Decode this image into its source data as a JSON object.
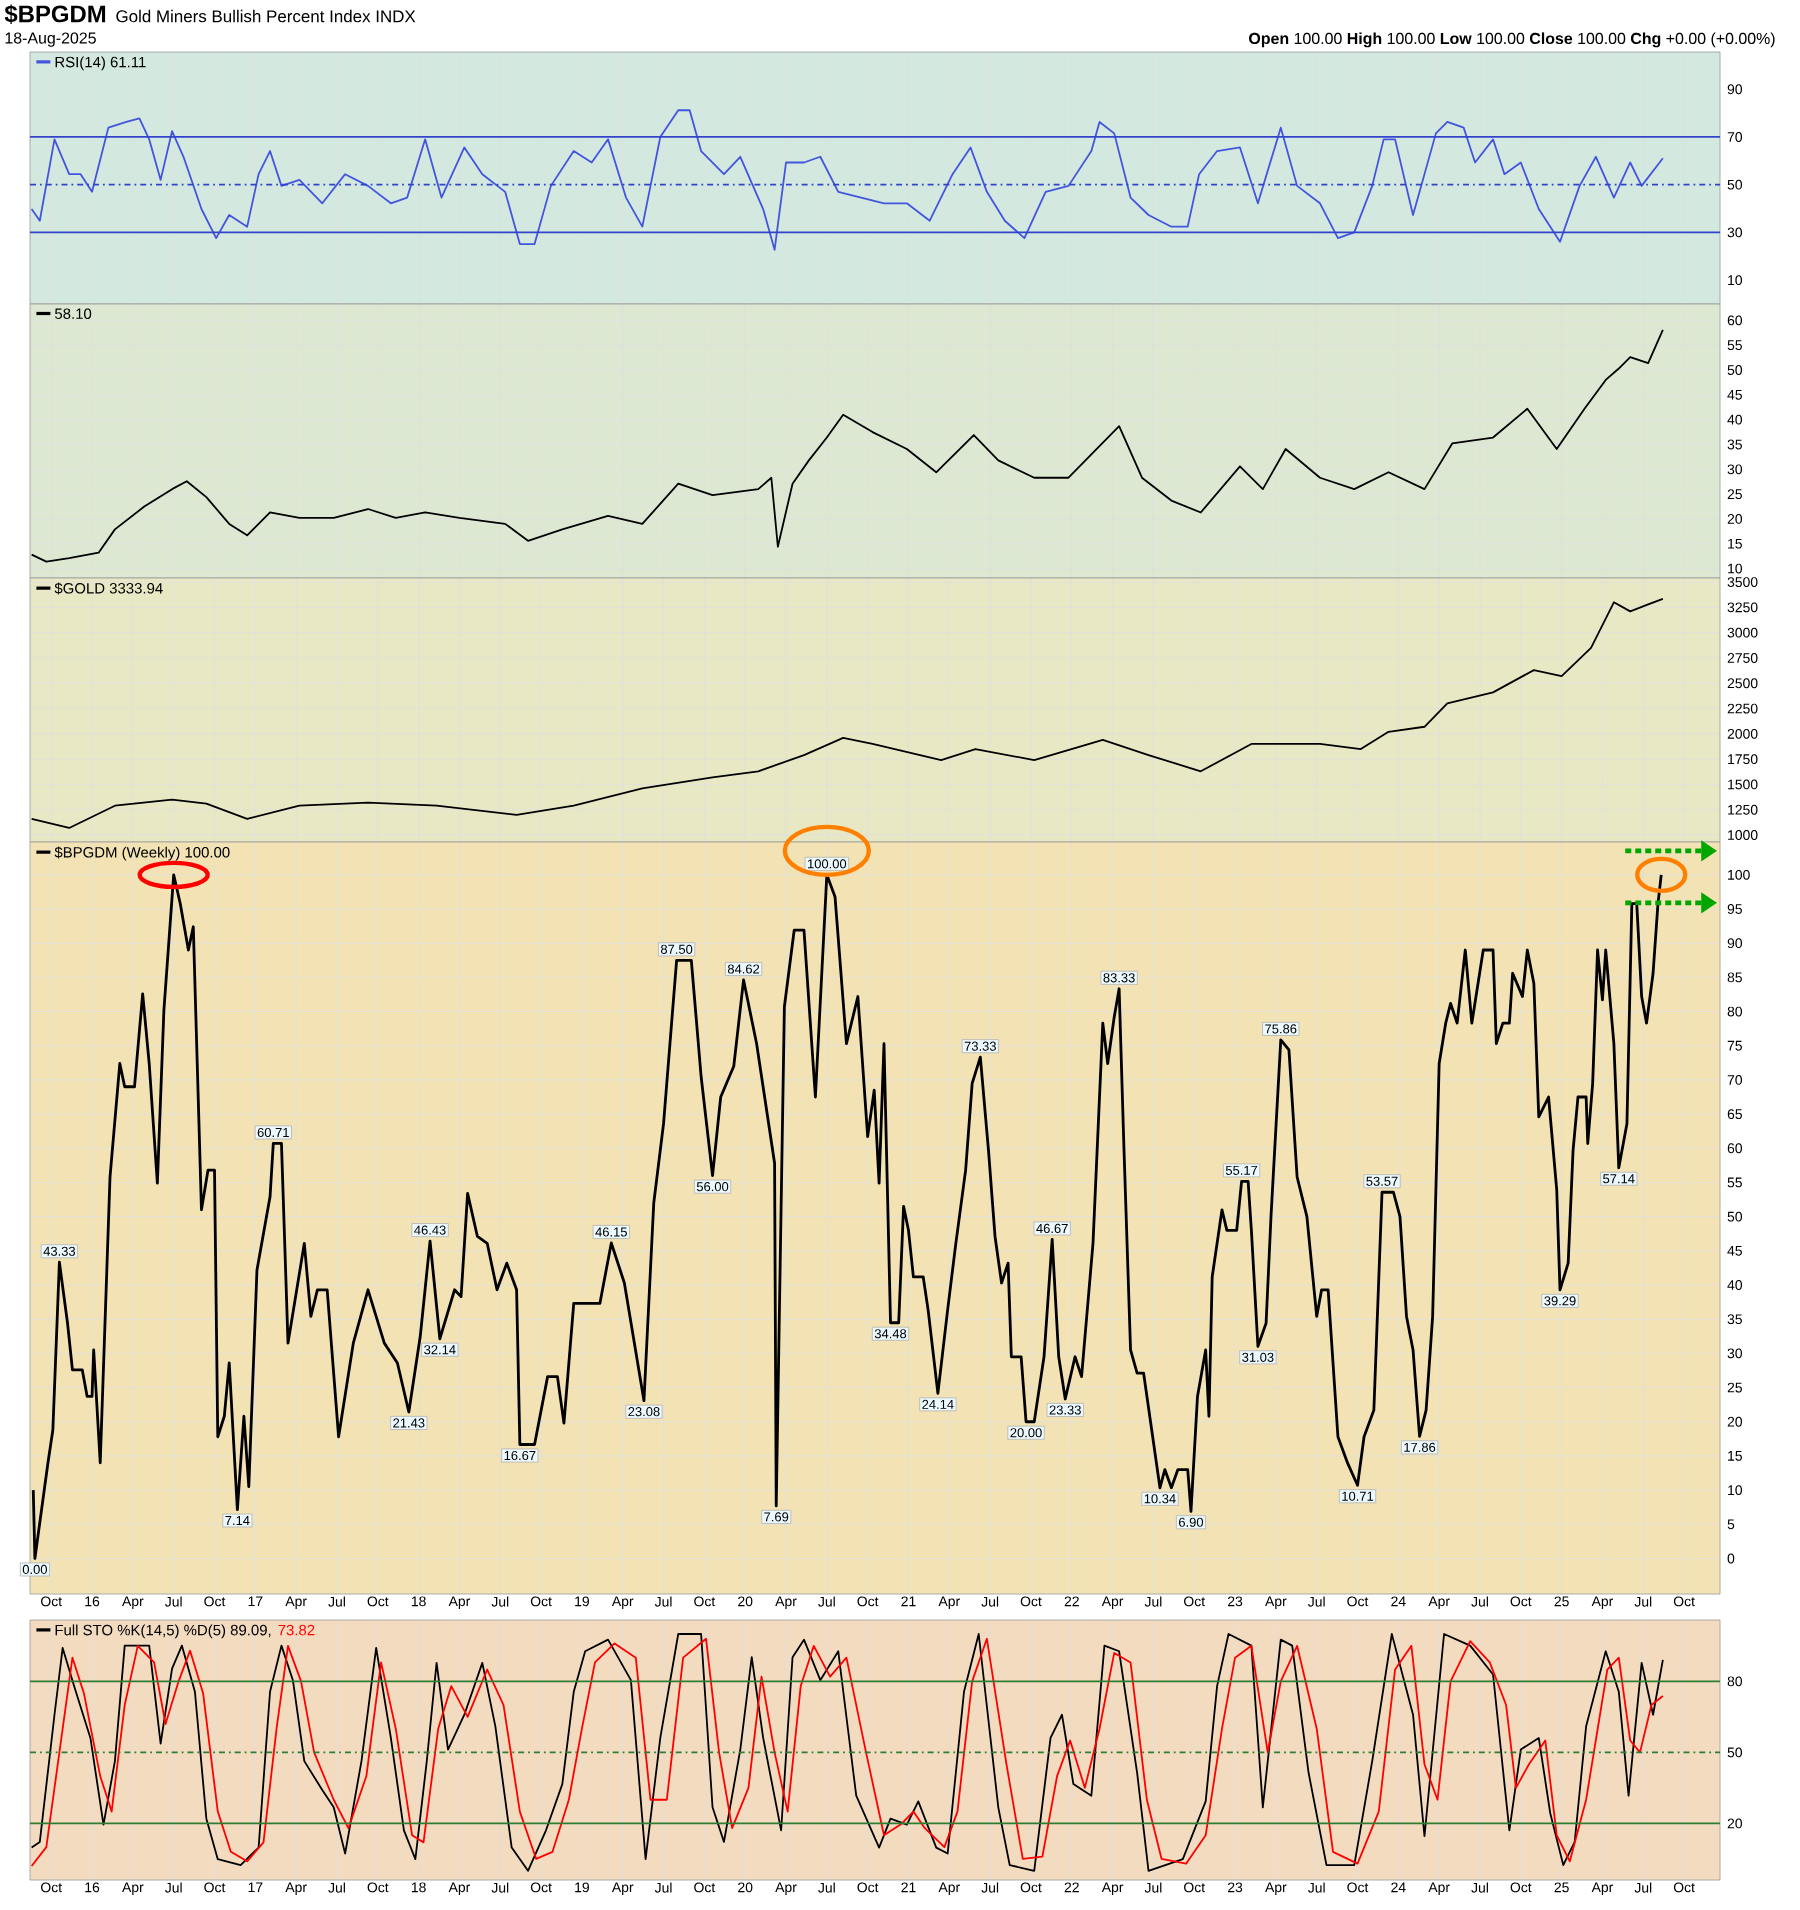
{
  "chart_data": [
    {
      "type": "line",
      "title": "$BPGDM",
      "subtitle": "Gold Miners Bullish Percent Index INDX",
      "annotations": [
        "18-Aug-2025",
        "**Open** 100.00 **High** 100.00 **Low** 100.00 **Close** 100.00 **Chg** +0.00 (+0.00%)"
      ],
      "xlim": [
        2015.62,
        2025.97
      ],
      "xticks": [
        2015.75,
        2016,
        2016.25,
        2016.5,
        2016.75,
        2017,
        2017.25,
        2017.5,
        2017.75,
        2018,
        2018.25,
        2018.5,
        2018.75,
        2019,
        2019.25,
        2019.5,
        2019.75,
        2020,
        2020.25,
        2020.5,
        2020.75,
        2021,
        2021.25,
        2021.5,
        2021.75,
        2022,
        2022.25,
        2022.5,
        2022.75,
        2023,
        2023.25,
        2023.5,
        2023.75,
        2024,
        2024.25,
        2024.5,
        2024.75,
        2025,
        2025.25,
        2025.5,
        2025.75
      ],
      "ylim": [
        0,
        105.6
      ],
      "yticks": [
        10,
        30,
        50,
        70,
        90
      ],
      "grid": "x",
      "tick_labels": "y",
      "legend": "top left",
      "ref_lines": [
        {
          "axis": "y",
          "value": 30,
          "color": "#3344cc",
          "line_style": "solid"
        },
        {
          "axis": "y",
          "value": 50,
          "color": "#3344cc",
          "line_style": "dashed"
        },
        {
          "axis": "y",
          "value": 70,
          "color": "#3344cc",
          "line_style": "solid"
        }
      ],
      "series": [
        {
          "name": "RSI(14) 61.11",
          "color": "#4455dd",
          "x": [
            2015.63,
            2015.68,
            2015.77,
            2015.86,
            2015.93,
            2016.0,
            2016.1,
            2016.21,
            2016.29,
            2016.35,
            2016.42,
            2016.49,
            2016.56,
            2016.67,
            2016.76,
            2016.84,
            2016.95,
            2017.02,
            2017.09,
            2017.16,
            2017.27,
            2017.41,
            2017.55,
            2017.69,
            2017.83,
            2017.93,
            2018.04,
            2018.14,
            2018.28,
            2018.39,
            2018.53,
            2018.62,
            2018.71,
            2018.81,
            2018.95,
            2019.06,
            2019.16,
            2019.27,
            2019.37,
            2019.48,
            2019.59,
            2019.66,
            2019.73,
            2019.87,
            2019.97,
            2020.11,
            2020.18,
            2020.25,
            2020.36,
            2020.46,
            2020.57,
            2020.71,
            2020.85,
            2020.99,
            2021.13,
            2021.27,
            2021.38,
            2021.48,
            2021.59,
            2021.71,
            2021.84,
            2021.98,
            2022.12,
            2022.17,
            2022.26,
            2022.36,
            2022.47,
            2022.61,
            2022.71,
            2022.78,
            2022.89,
            2023.03,
            2023.14,
            2023.28,
            2023.38,
            2023.52,
            2023.63,
            2023.73,
            2023.84,
            2023.91,
            2023.98,
            2024.09,
            2024.23,
            2024.3,
            2024.4,
            2024.47,
            2024.58,
            2024.65,
            2024.75,
            2024.86,
            2024.99,
            2025.11,
            2025.21,
            2025.32,
            2025.42,
            2025.49,
            2025.62
          ],
          "values": [
            39.8,
            34.9,
            69,
            54.4,
            54.4,
            47,
            73.9,
            76.3,
            77.8,
            69,
            52,
            72.4,
            61.7,
            39.8,
            27.6,
            37.3,
            32.4,
            54.4,
            64.1,
            49.5,
            52,
            42.2,
            54.4,
            49.5,
            42.2,
            44.6,
            69,
            44.6,
            65.6,
            54.4,
            47,
            25.1,
            25.1,
            49.5,
            64.1,
            59.3,
            69,
            44.6,
            32.4,
            70,
            81.2,
            81.2,
            64.1,
            54.4,
            61.7,
            39.8,
            22.7,
            59.3,
            59.3,
            61.7,
            47,
            44.6,
            42.2,
            42.2,
            34.9,
            54.4,
            65.6,
            47,
            34.9,
            27.6,
            47,
            49.5,
            64.1,
            76.3,
            71.5,
            44.6,
            37.3,
            32.4,
            32.4,
            54.4,
            64.1,
            65.6,
            42.2,
            73.9,
            49.5,
            42.2,
            27.6,
            30,
            49.5,
            69,
            69,
            37.3,
            71.5,
            76.3,
            73.9,
            59.3,
            69,
            54.4,
            59.3,
            39.8,
            26.1,
            49.5,
            61.7,
            44.6,
            59.3,
            49.5,
            61.1
          ]
        }
      ]
    },
    {
      "type": "line",
      "xlim": [
        2015.62,
        2025.97
      ],
      "xticks": [
        2015.75,
        2016,
        2016.25,
        2016.5,
        2016.75,
        2017,
        2017.25,
        2017.5,
        2017.75,
        2018,
        2018.25,
        2018.5,
        2018.75,
        2019,
        2019.25,
        2019.5,
        2019.75,
        2020,
        2020.25,
        2020.5,
        2020.75,
        2021,
        2021.25,
        2021.5,
        2021.75,
        2022,
        2022.25,
        2022.5,
        2022.75,
        2023,
        2023.25,
        2023.5,
        2023.75,
        2024,
        2024.25,
        2024.5,
        2024.75,
        2025,
        2025.25,
        2025.5,
        2025.75
      ],
      "ylim": [
        8.1,
        63.3
      ],
      "yticks": [
        10,
        15,
        20,
        25,
        30,
        35,
        40,
        45,
        50,
        55,
        60
      ],
      "grid": true,
      "tick_labels": "y",
      "legend": "top left",
      "series": [
        {
          "name": "58.10",
          "color": "#000000",
          "x": [
            2015.63,
            2015.72,
            2015.86,
            2016.04,
            2016.14,
            2016.32,
            2016.49,
            2016.58,
            2016.7,
            2016.84,
            2016.95,
            2017.09,
            2017.27,
            2017.48,
            2017.69,
            2017.86,
            2018.04,
            2018.25,
            2018.53,
            2018.67,
            2018.88,
            2019.16,
            2019.37,
            2019.59,
            2019.8,
            2020.08,
            2020.16,
            2020.2,
            2020.29,
            2020.39,
            2020.5,
            2020.6,
            2020.78,
            2020.99,
            2021.17,
            2021.4,
            2021.55,
            2021.77,
            2021.98,
            2022.29,
            2022.43,
            2022.61,
            2022.79,
            2023.03,
            2023.17,
            2023.31,
            2023.52,
            2023.73,
            2023.94,
            2024.16,
            2024.33,
            2024.58,
            2024.79,
            2024.97,
            2025.14,
            2025.27,
            2025.35,
            2025.42,
            2025.53,
            2025.62
          ],
          "values": [
            12.8,
            11.4,
            12.1,
            13.2,
            17.9,
            22.5,
            26,
            27.6,
            24.4,
            19,
            16.7,
            21.3,
            20.2,
            20.2,
            22,
            20.2,
            21.3,
            20.2,
            19,
            15.6,
            17.9,
            20.6,
            19,
            27.1,
            24.8,
            26,
            28.3,
            14.4,
            27.1,
            31.8,
            36.4,
            41,
            37.5,
            34.1,
            29.4,
            36.9,
            31.8,
            28.3,
            28.3,
            38.7,
            28.3,
            23.7,
            21.3,
            30.6,
            26,
            34.1,
            28.3,
            26,
            29.4,
            26,
            35.2,
            36.4,
            42.2,
            34.1,
            42.2,
            48,
            50.3,
            52.6,
            51.4,
            58.1
          ]
        }
      ]
    },
    {
      "type": "line",
      "xlim": [
        2015.62,
        2025.97
      ],
      "xticks": [
        2015.75,
        2016,
        2016.25,
        2016.5,
        2016.75,
        2017,
        2017.25,
        2017.5,
        2017.75,
        2018,
        2018.25,
        2018.5,
        2018.75,
        2019,
        2019.25,
        2019.5,
        2019.75,
        2020,
        2020.25,
        2020.5,
        2020.75,
        2021,
        2021.25,
        2021.5,
        2021.75,
        2022,
        2022.25,
        2022.5,
        2022.75,
        2023,
        2023.25,
        2023.5,
        2023.75,
        2024,
        2024.25,
        2024.5,
        2024.75,
        2025,
        2025.25,
        2025.5,
        2025.75
      ],
      "ylim": [
        931,
        3540
      ],
      "yticks": [
        1000,
        1250,
        1500,
        1750,
        2000,
        2250,
        2500,
        2750,
        3000,
        3250,
        3500
      ],
      "grid": true,
      "tick_labels": "y",
      "legend": "top left",
      "series": [
        {
          "name": "$GOLD 3333.94",
          "color": "#000000",
          "x": [
            2015.63,
            2015.86,
            2016.14,
            2016.49,
            2016.7,
            2016.95,
            2017.27,
            2017.69,
            2018.11,
            2018.6,
            2018.95,
            2019.37,
            2019.8,
            2020.08,
            2020.36,
            2020.6,
            2020.78,
            2021.2,
            2021.41,
            2021.77,
            2022.19,
            2022.47,
            2022.79,
            2023.1,
            2023.52,
            2023.77,
            2023.94,
            2024.16,
            2024.3,
            2024.58,
            2024.83,
            2025.0,
            2025.18,
            2025.32,
            2025.42,
            2025.53,
            2025.62
          ],
          "values": [
            1160,
            1070,
            1290,
            1350,
            1310,
            1160,
            1290,
            1320,
            1290,
            1200,
            1290,
            1460,
            1570,
            1630,
            1790,
            1960,
            1900,
            1740,
            1850,
            1740,
            1940,
            1790,
            1630,
            1900,
            1900,
            1850,
            2020,
            2070,
            2300,
            2410,
            2630,
            2570,
            2850,
            3300,
            3210,
            3280,
            3334
          ]
        }
      ]
    },
    {
      "type": "line",
      "xlim": [
        2015.62,
        2025.97
      ],
      "xticks": [
        {
          "value": 2015.75,
          "label": "Oct"
        },
        {
          "value": 2016,
          "label": "16"
        },
        {
          "value": 2016.25,
          "label": "Apr"
        },
        {
          "value": 2016.5,
          "label": "Jul"
        },
        {
          "value": 2016.75,
          "label": "Oct"
        },
        {
          "value": 2017,
          "label": "17"
        },
        {
          "value": 2017.25,
          "label": "Apr"
        },
        {
          "value": 2017.5,
          "label": "Jul"
        },
        {
          "value": 2017.75,
          "label": "Oct"
        },
        {
          "value": 2018,
          "label": "18"
        },
        {
          "value": 2018.25,
          "label": "Apr"
        },
        {
          "value": 2018.5,
          "label": "Jul"
        },
        {
          "value": 2018.75,
          "label": "Oct"
        },
        {
          "value": 2019,
          "label": "19"
        },
        {
          "value": 2019.25,
          "label": "Apr"
        },
        {
          "value": 2019.5,
          "label": "Jul"
        },
        {
          "value": 2019.75,
          "label": "Oct"
        },
        {
          "value": 2020,
          "label": "20"
        },
        {
          "value": 2020.25,
          "label": "Apr"
        },
        {
          "value": 2020.5,
          "label": "Jul"
        },
        {
          "value": 2020.75,
          "label": "Oct"
        },
        {
          "value": 2021,
          "label": "21"
        },
        {
          "value": 2021.25,
          "label": "Apr"
        },
        {
          "value": 2021.5,
          "label": "Jul"
        },
        {
          "value": 2021.75,
          "label": "Oct"
        },
        {
          "value": 2022,
          "label": "22"
        },
        {
          "value": 2022.25,
          "label": "Apr"
        },
        {
          "value": 2022.5,
          "label": "Jul"
        },
        {
          "value": 2022.75,
          "label": "Oct"
        },
        {
          "value": 2023,
          "label": "23"
        },
        {
          "value": 2023.25,
          "label": "Apr"
        },
        {
          "value": 2023.5,
          "label": "Jul"
        },
        {
          "value": 2023.75,
          "label": "Oct"
        },
        {
          "value": 2024,
          "label": "24"
        },
        {
          "value": 2024.25,
          "label": "Apr"
        },
        {
          "value": 2024.5,
          "label": "Jul"
        },
        {
          "value": 2024.75,
          "label": "Oct"
        },
        {
          "value": 2025,
          "label": "25"
        },
        {
          "value": 2025.25,
          "label": "Apr"
        },
        {
          "value": 2025.5,
          "label": "Jul"
        },
        {
          "value": 2025.75,
          "label": "Oct"
        }
      ],
      "ylim": [
        -5.2,
        104.8
      ],
      "yticks": [
        0,
        5,
        10,
        15,
        20,
        25,
        30,
        35,
        40,
        45,
        50,
        55,
        60,
        65,
        70,
        75,
        80,
        85,
        90,
        95,
        100
      ],
      "grid": true,
      "legend": "top left",
      "series": [
        {
          "name": "$BPGDM (Weekly) 100.00",
          "color": "#000000",
          "x": [
            2015.64,
            2015.65,
            2015.73,
            2015.76,
            2015.8,
            2015.85,
            2015.88,
            2015.94,
            2015.97,
            2016.0,
            2016.01,
            2016.05,
            2016.11,
            2016.17,
            2016.2,
            2016.26,
            2016.31,
            2016.35,
            2016.4,
            2016.44,
            2016.5,
            2016.54,
            2016.59,
            2016.62,
            2016.67,
            2016.71,
            2016.75,
            2016.77,
            2016.81,
            2016.84,
            2016.89,
            2016.93,
            2016.96,
            2017.01,
            2017.09,
            2017.11,
            2017.16,
            2017.2,
            2017.3,
            2017.34,
            2017.38,
            2017.44,
            2017.51,
            2017.6,
            2017.69,
            2017.79,
            2017.87,
            2017.94,
            2018.01,
            2018.07,
            2018.13,
            2018.22,
            2018.26,
            2018.3,
            2018.36,
            2018.42,
            2018.48,
            2018.54,
            2018.6,
            2018.62,
            2018.71,
            2018.79,
            2018.85,
            2018.89,
            2018.95,
            2018.99,
            2019.11,
            2019.18,
            2019.26,
            2019.38,
            2019.44,
            2019.5,
            2019.58,
            2019.67,
            2019.73,
            2019.8,
            2019.85,
            2019.93,
            2019.99,
            2020.07,
            2020.18,
            2020.19,
            2020.24,
            2020.3,
            2020.36,
            2020.43,
            2020.5,
            2020.55,
            2020.62,
            2020.69,
            2020.75,
            2020.79,
            2020.82,
            2020.85,
            2020.89,
            2020.94,
            2020.97,
            2021.0,
            2021.03,
            2021.09,
            2021.12,
            2021.18,
            2021.24,
            2021.29,
            2021.35,
            2021.39,
            2021.44,
            2021.49,
            2021.53,
            2021.57,
            2021.61,
            2021.63,
            2021.69,
            2021.72,
            2021.77,
            2021.83,
            2021.88,
            2021.92,
            2021.96,
            2022.02,
            2022.06,
            2022.13,
            2022.19,
            2022.22,
            2022.26,
            2022.29,
            2022.32,
            2022.36,
            2022.4,
            2022.44,
            2022.54,
            2022.57,
            2022.61,
            2022.65,
            2022.71,
            2022.73,
            2022.77,
            2022.82,
            2022.84,
            2022.86,
            2022.92,
            2022.95,
            2023.01,
            2023.04,
            2023.08,
            2023.1,
            2023.14,
            2023.19,
            2023.22,
            2023.28,
            2023.33,
            2023.38,
            2023.44,
            2023.5,
            2023.53,
            2023.57,
            2023.63,
            2023.69,
            2023.75,
            2023.79,
            2023.85,
            2023.9,
            2023.97,
            2024.01,
            2024.05,
            2024.09,
            2024.13,
            2024.17,
            2024.21,
            2024.25,
            2024.29,
            2024.32,
            2024.36,
            2024.41,
            2024.45,
            2024.52,
            2024.58,
            2024.6,
            2024.64,
            2024.68,
            2024.7,
            2024.76,
            2024.79,
            2024.83,
            2024.86,
            2024.92,
            2024.97,
            2024.99,
            2025.04,
            2025.07,
            2025.1,
            2025.15,
            2025.16,
            2025.19,
            2025.22,
            2025.25,
            2025.27,
            2025.32,
            2025.35,
            2025.4,
            2025.43,
            2025.46,
            2025.49,
            2025.52,
            2025.56,
            2025.59,
            2025.61
          ],
          "values": [
            10.0,
            0,
            14.0,
            18.8,
            43.33,
            34.4,
            27.6,
            27.6,
            23.7,
            23.7,
            30.5,
            14.0,
            55.8,
            72.4,
            69.0,
            69.0,
            82.6,
            72.4,
            54.9,
            80.2,
            100,
            95.8,
            89.0,
            92.4,
            51.0,
            56.8,
            56.8,
            17.8,
            20.8,
            28.6,
            7.14,
            20.8,
            10.5,
            42.2,
            52.9,
            60.71,
            60.71,
            31.5,
            46.1,
            35.4,
            39.3,
            39.3,
            17.8,
            31.5,
            39.3,
            31.5,
            28.6,
            21.43,
            32.5,
            46.43,
            32.14,
            39.3,
            38.3,
            53.4,
            47.1,
            46.1,
            39.3,
            43.2,
            39.3,
            16.67,
            16.67,
            26.6,
            26.6,
            19.8,
            37.3,
            37.3,
            37.3,
            46.15,
            40.3,
            23.08,
            52.0,
            63.6,
            87.5,
            87.5,
            70.5,
            56.0,
            67.5,
            72.0,
            84.62,
            75.3,
            57.8,
            7.69,
            80.7,
            91.9,
            91.9,
            67.5,
            100,
            96.8,
            75.3,
            82.2,
            61.7,
            68.5,
            54.9,
            75.3,
            34.48,
            34.48,
            51.5,
            48.0,
            41.2,
            41.2,
            36.4,
            24.14,
            36.4,
            46.1,
            56.8,
            69.5,
            73.33,
            59.7,
            47.1,
            40.3,
            43.2,
            29.5,
            29.5,
            20.0,
            20.0,
            29.5,
            46.67,
            29.5,
            23.33,
            29.5,
            26.6,
            46.1,
            78.3,
            72.4,
            79.2,
            83.33,
            59.7,
            30.5,
            27.1,
            27.1,
            10.34,
            13.0,
            10.34,
            13.0,
            13.0,
            6.9,
            23.7,
            30.5,
            20.8,
            41.2,
            51.0,
            48.0,
            48.0,
            55.17,
            55.17,
            48.0,
            31.03,
            34.4,
            50.0,
            75.86,
            74.4,
            55.8,
            50.0,
            35.4,
            39.3,
            39.3,
            17.8,
            13.9,
            10.71,
            17.8,
            21.7,
            53.57,
            53.57,
            50.0,
            35.4,
            30.5,
            17.86,
            21.7,
            35.4,
            72.4,
            78.3,
            81.2,
            78.3,
            89.0,
            78.3,
            89.0,
            89.0,
            75.3,
            78.3,
            78.3,
            85.6,
            82.2,
            89.0,
            84.1,
            64.6,
            67.5,
            53.9,
            39.29,
            43.2,
            59.7,
            67.5,
            67.5,
            60.7,
            69.5,
            89.0,
            81.7,
            89.0,
            75.3,
            57.14,
            63.6,
            95.8,
            95.8,
            82.2,
            78.3,
            85.6,
            95.8,
            100
          ],
          "value_labels": [
            null,
            "0.00",
            null,
            null,
            "43.33",
            null,
            null,
            null,
            null,
            null,
            null,
            null,
            null,
            null,
            null,
            null,
            null,
            null,
            null,
            null,
            null,
            null,
            null,
            null,
            null,
            null,
            null,
            null,
            null,
            null,
            "7.14",
            null,
            null,
            null,
            null,
            "60.71",
            null,
            null,
            null,
            null,
            null,
            null,
            null,
            null,
            null,
            null,
            null,
            "21.43",
            null,
            "46.43",
            "32.14",
            null,
            null,
            null,
            null,
            null,
            null,
            null,
            null,
            "16.67",
            null,
            null,
            null,
            null,
            null,
            null,
            null,
            "46.15",
            null,
            "23.08",
            null,
            null,
            "87.50",
            null,
            null,
            "56.00",
            null,
            null,
            "84.62",
            null,
            null,
            "7.69",
            null,
            null,
            null,
            null,
            "100.00",
            null,
            null,
            null,
            null,
            null,
            null,
            null,
            "34.48",
            null,
            null,
            null,
            null,
            null,
            null,
            "24.14",
            null,
            null,
            null,
            null,
            "73.33",
            null,
            null,
            null,
            null,
            null,
            null,
            "20.00",
            null,
            null,
            "46.67",
            null,
            "23.33",
            null,
            null,
            null,
            null,
            null,
            null,
            "83.33",
            null,
            null,
            null,
            null,
            "10.34",
            null,
            null,
            null,
            null,
            "6.90",
            null,
            null,
            null,
            null,
            null,
            null,
            null,
            "55.17",
            null,
            null,
            "31.03",
            null,
            null,
            "75.86",
            null,
            null,
            null,
            null,
            null,
            null,
            null,
            null,
            "10.71",
            null,
            null,
            "53.57",
            null,
            null,
            null,
            null,
            "17.86",
            null,
            null,
            null,
            null,
            null,
            null,
            null,
            null,
            null,
            null,
            null,
            null,
            null,
            null,
            null,
            null,
            null,
            null,
            null,
            null,
            "39.29",
            null,
            null,
            null,
            null,
            null,
            null,
            null,
            null,
            null,
            null,
            "57.14",
            null,
            null,
            null,
            null,
            null,
            null,
            null,
            null
          ]
        }
      ]
    },
    {
      "type": "line",
      "xlim": [
        2015.62,
        2025.97
      ],
      "xticks": [
        {
          "value": 2015.75,
          "label": "Oct"
        },
        {
          "value": 2016,
          "label": "16"
        },
        {
          "value": 2016.25,
          "label": "Apr"
        },
        {
          "value": 2016.5,
          "label": "Jul"
        },
        {
          "value": 2016.75,
          "label": "Oct"
        },
        {
          "value": 2017,
          "label": "17"
        },
        {
          "value": 2017.25,
          "label": "Apr"
        },
        {
          "value": 2017.5,
          "label": "Jul"
        },
        {
          "value": 2017.75,
          "label": "Oct"
        },
        {
          "value": 2018,
          "label": "18"
        },
        {
          "value": 2018.25,
          "label": "Apr"
        },
        {
          "value": 2018.5,
          "label": "Jul"
        },
        {
          "value": 2018.75,
          "label": "Oct"
        },
        {
          "value": 2019,
          "label": "19"
        },
        {
          "value": 2019.25,
          "label": "Apr"
        },
        {
          "value": 2019.5,
          "label": "Jul"
        },
        {
          "value": 2019.75,
          "label": "Oct"
        },
        {
          "value": 2020,
          "label": "20"
        },
        {
          "value": 2020.25,
          "label": "Apr"
        },
        {
          "value": 2020.5,
          "label": "Jul"
        },
        {
          "value": 2020.75,
          "label": "Oct"
        },
        {
          "value": 2021,
          "label": "21"
        },
        {
          "value": 2021.25,
          "label": "Apr"
        },
        {
          "value": 2021.5,
          "label": "Jul"
        },
        {
          "value": 2021.75,
          "label": "Oct"
        },
        {
          "value": 2022,
          "label": "22"
        },
        {
          "value": 2022.25,
          "label": "Apr"
        },
        {
          "value": 2022.5,
          "label": "Jul"
        },
        {
          "value": 2022.75,
          "label": "Oct"
        },
        {
          "value": 2023,
          "label": "23"
        },
        {
          "value": 2023.25,
          "label": "Apr"
        },
        {
          "value": 2023.5,
          "label": "Jul"
        },
        {
          "value": 2023.75,
          "label": "Oct"
        },
        {
          "value": 2024,
          "label": "24"
        },
        {
          "value": 2024.25,
          "label": "Apr"
        },
        {
          "value": 2024.5,
          "label": "Jul"
        },
        {
          "value": 2024.75,
          "label": "Oct"
        },
        {
          "value": 2025,
          "label": "25"
        },
        {
          "value": 2025.25,
          "label": "Apr"
        },
        {
          "value": 2025.5,
          "label": "Jul"
        },
        {
          "value": 2025.75,
          "label": "Oct"
        }
      ],
      "ylim": [
        -3.9,
        105.9
      ],
      "yticks": [
        20,
        50,
        80
      ],
      "grid": "x",
      "legend": "top left",
      "ref_lines": [
        {
          "axis": "y",
          "value": 20,
          "color": "#2e7d32",
          "line_style": "solid"
        },
        {
          "axis": "y",
          "value": 50,
          "color": "#2e7d32",
          "line_style": "dashed"
        },
        {
          "axis": "y",
          "value": 80,
          "color": "#2e7d32",
          "line_style": "solid"
        }
      ],
      "series": [
        {
          "name": "Full STO %K(14,5) %D(5) 89.09,",
          "color": "#000000",
          "x": [
            2015.63,
            2015.68,
            2015.77,
            2015.82,
            2015.89,
            2015.99,
            2016.07,
            2016.14,
            2016.2,
            2016.27,
            2016.35,
            2016.42,
            2016.49,
            2016.55,
            2016.63,
            2016.7,
            2016.77,
            2016.91,
            2017.02,
            2017.09,
            2017.16,
            2017.23,
            2017.3,
            2017.41,
            2017.48,
            2017.55,
            2017.65,
            2017.74,
            2017.83,
            2017.91,
            2017.98,
            2018.05,
            2018.11,
            2018.18,
            2018.28,
            2018.39,
            2018.47,
            2018.57,
            2018.67,
            2018.78,
            2018.88,
            2018.95,
            2019.02,
            2019.16,
            2019.3,
            2019.39,
            2019.48,
            2019.59,
            2019.73,
            2019.8,
            2019.87,
            2019.97,
            2020.04,
            2020.11,
            2020.22,
            2020.29,
            2020.36,
            2020.46,
            2020.57,
            2020.68,
            2020.82,
            2020.89,
            2020.99,
            2021.06,
            2021.17,
            2021.24,
            2021.34,
            2021.43,
            2021.55,
            2021.62,
            2021.77,
            2021.87,
            2021.94,
            2022.01,
            2022.12,
            2022.2,
            2022.29,
            2022.4,
            2022.47,
            2022.68,
            2022.82,
            2022.89,
            2022.96,
            2023.1,
            2023.17,
            2023.28,
            2023.35,
            2023.45,
            2023.56,
            2023.73,
            2023.84,
            2023.96,
            2024.09,
            2024.16,
            2024.28,
            2024.44,
            2024.58,
            2024.65,
            2024.68,
            2024.75,
            2024.86,
            2024.93,
            2025.01,
            2025.08,
            2025.15,
            2025.27,
            2025.35,
            2025.41,
            2025.49,
            2025.56,
            2025.62
          ],
          "values": [
            9.8,
            12.2,
            65.9,
            94.1,
            78,
            56.1,
            19.5,
            46.3,
            95.1,
            95.1,
            95.1,
            53.7,
            85.4,
            95.1,
            75.6,
            22,
            4.9,
            2.4,
            9.8,
            75.6,
            95.1,
            80.5,
            46.3,
            34.1,
            26.8,
            7.3,
            46.3,
            94.1,
            56.1,
            17.1,
            4.9,
            46.3,
            87.8,
            51.2,
            65.9,
            87.8,
            61,
            9.8,
            0,
            17.1,
            36.6,
            75.6,
            92.7,
            97.6,
            80.5,
            4.9,
            56.1,
            100,
            100,
            26.8,
            12.2,
            51.2,
            90.2,
            56.1,
            17.1,
            90.2,
            97.6,
            80.5,
            92.7,
            31.7,
            9.8,
            22,
            19.5,
            29.3,
            9.8,
            7.3,
            75.6,
            100,
            26.8,
            2.4,
            0,
            56.1,
            65.9,
            36.6,
            31.7,
            95.1,
            92.7,
            41.5,
            0,
            4.9,
            29.3,
            78,
            100,
            95.1,
            26.8,
            97.6,
            95.1,
            41.5,
            2.4,
            2.4,
            46.3,
            100,
            65.9,
            14.6,
            100,
            95.1,
            82.9,
            36.6,
            17.1,
            51.2,
            56.1,
            24.4,
            2.4,
            12.2,
            61,
            92.7,
            75.6,
            31.7,
            87.8,
            65.9,
            89.09
          ]
        },
        {
          "name": "73.82",
          "color": "#ff0000",
          "x": [
            2015.63,
            2015.72,
            2015.82,
            2015.88,
            2015.95,
            2016.05,
            2016.12,
            2016.2,
            2016.28,
            2016.38,
            2016.45,
            2016.53,
            2016.6,
            2016.68,
            2016.77,
            2016.85,
            2016.95,
            2017.05,
            2017.13,
            2017.2,
            2017.28,
            2017.36,
            2017.48,
            2017.57,
            2017.68,
            2017.77,
            2017.86,
            2017.96,
            2018.03,
            2018.12,
            2018.2,
            2018.3,
            2018.42,
            2018.52,
            2018.62,
            2018.72,
            2018.82,
            2018.92,
            2019.0,
            2019.08,
            2019.2,
            2019.33,
            2019.42,
            2019.52,
            2019.62,
            2019.76,
            2019.84,
            2019.92,
            2020.02,
            2020.1,
            2020.18,
            2020.26,
            2020.34,
            2020.42,
            2020.52,
            2020.62,
            2020.74,
            2020.85,
            2020.96,
            2021.03,
            2021.1,
            2021.22,
            2021.3,
            2021.39,
            2021.48,
            2021.6,
            2021.7,
            2021.82,
            2021.91,
            2021.99,
            2022.08,
            2022.17,
            2022.26,
            2022.36,
            2022.46,
            2022.55,
            2022.7,
            2022.82,
            2022.92,
            2023.0,
            2023.1,
            2023.2,
            2023.28,
            2023.38,
            2023.5,
            2023.6,
            2023.75,
            2023.88,
            2023.98,
            2024.08,
            2024.16,
            2024.24,
            2024.32,
            2024.44,
            2024.56,
            2024.66,
            2024.72,
            2024.8,
            2024.9,
            2024.97,
            2025.05,
            2025.15,
            2025.28,
            2025.35,
            2025.42,
            2025.48,
            2025.55,
            2025.62
          ],
          "values": [
            2,
            10,
            60,
            90,
            75,
            40,
            25,
            70,
            95,
            88,
            62,
            80,
            93,
            75,
            25,
            8,
            4,
            12,
            60,
            95,
            80,
            50,
            30,
            18,
            40,
            88,
            60,
            15,
            12,
            60,
            78,
            65,
            85,
            70,
            25,
            5,
            8,
            30,
            60,
            88,
            96,
            90,
            30,
            30,
            90,
            98,
            50,
            18,
            35,
            82,
            50,
            25,
            78,
            95,
            82,
            90,
            50,
            15,
            20,
            25,
            18,
            10,
            25,
            80,
            98,
            45,
            5,
            6,
            40,
            55,
            35,
            60,
            92,
            88,
            30,
            5,
            3,
            15,
            60,
            90,
            95,
            50,
            80,
            95,
            60,
            8,
            3,
            25,
            85,
            95,
            45,
            30,
            80,
            97,
            88,
            70,
            35,
            45,
            55,
            15,
            4,
            30,
            85,
            90,
            55,
            50,
            70,
            73.82
          ]
        }
      ]
    }
  ]
}
